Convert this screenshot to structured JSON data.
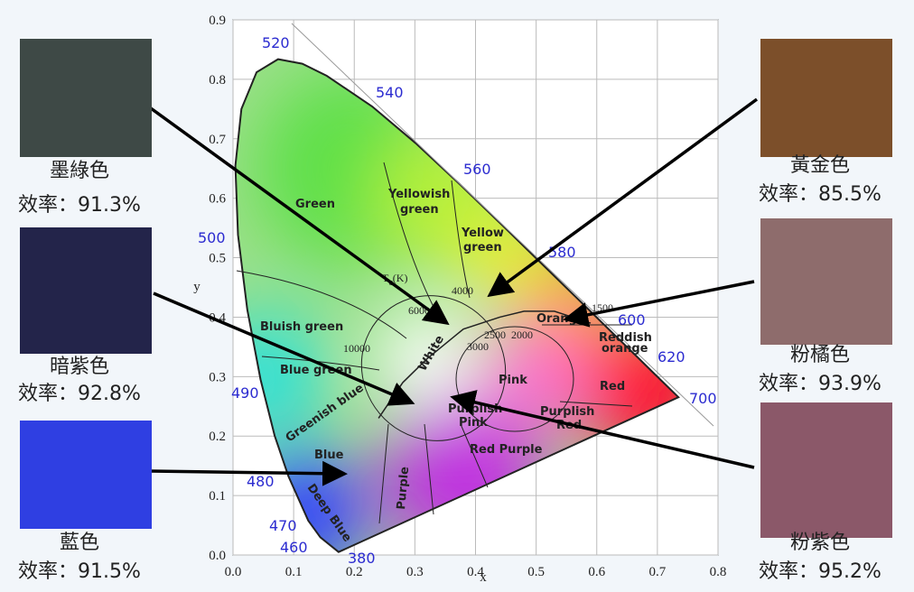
{
  "swatches": [
    {
      "name": "墨綠色",
      "efficiency": "效率：91.3%",
      "color": "#3e4946"
    },
    {
      "name": "暗紫色",
      "efficiency": "效率：92.8%",
      "color": "#23244a"
    },
    {
      "name": "藍色",
      "efficiency": "效率：91.5%",
      "color": "#2f3fe2"
    },
    {
      "name": "黃金色",
      "efficiency": "效率：85.5%",
      "color": "#7c4f2a"
    },
    {
      "name": "粉橘色",
      "efficiency": "效率：93.9%",
      "color": "#8e6c6c"
    },
    {
      "name": "粉紫色",
      "efficiency": "效率：95.2%",
      "color": "#8b5869"
    }
  ],
  "axes": {
    "x_label": "x",
    "y_label": "y",
    "xticks": [
      {
        "value": 0,
        "label": "0.0"
      },
      {
        "value": 0.1,
        "label": "0.1"
      },
      {
        "value": 0.2,
        "label": "0.2"
      },
      {
        "value": 0.3,
        "label": "0.3"
      },
      {
        "value": 0.4,
        "label": "0.4"
      },
      {
        "value": 0.5,
        "label": "0.5"
      },
      {
        "value": 0.6,
        "label": "0.6"
      },
      {
        "value": 0.7,
        "label": "0.7"
      },
      {
        "value": 0.8,
        "label": "0.8"
      }
    ],
    "yticks": [
      {
        "value": 0,
        "label": "0.0"
      },
      {
        "value": 0.1,
        "label": "0.1"
      },
      {
        "value": 0.2,
        "label": "0.2"
      },
      {
        "value": 0.3,
        "label": "0.3"
      },
      {
        "value": 0.4,
        "label": "0.4"
      },
      {
        "value": 0.5,
        "label": "0.5"
      },
      {
        "value": 0.6,
        "label": "0.6"
      },
      {
        "value": 0.7,
        "label": "0.7"
      },
      {
        "value": 0.8,
        "label": "0.8"
      },
      {
        "value": 0.9,
        "label": "0.9"
      }
    ]
  },
  "wavelengths": [
    "520",
    "540",
    "560",
    "580",
    "600",
    "620",
    "700",
    "500",
    "490",
    "480",
    "470",
    "460",
    "380"
  ],
  "regions": [
    "Green",
    "Yellowish",
    "green",
    "Yellow",
    "green",
    "Bluish green",
    "Blue green",
    "Greenish blue",
    "Blue",
    "Deep Blue",
    "Purple",
    "Pink",
    "Red",
    "Purplish",
    "Red",
    "Purplish",
    "Pink",
    "Red Purple",
    "Orange",
    "Reddish",
    "orange",
    "White"
  ],
  "locus": {
    "label": "T",
    "sub": "c",
    "unit": "(K)",
    "temperatures": [
      "10000",
      "6000",
      "4000",
      "3000",
      "2500",
      "2000",
      "1500"
    ]
  }
}
